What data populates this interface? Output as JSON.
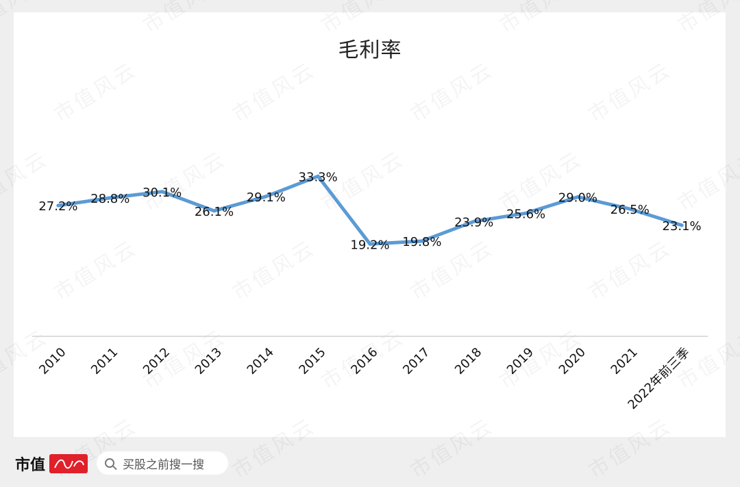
{
  "chart_data": {
    "type": "line",
    "title": "毛利率",
    "categories": [
      "2010",
      "2011",
      "2012",
      "2013",
      "2014",
      "2015",
      "2016",
      "2017",
      "2018",
      "2019",
      "2020",
      "2021",
      "2022年前三季"
    ],
    "values": [
      27.2,
      28.8,
      30.1,
      26.1,
      29.1,
      33.3,
      19.2,
      19.8,
      23.9,
      25.6,
      29.0,
      26.5,
      23.1
    ],
    "data_labels": [
      "27.2%",
      "28.8%",
      "30.1%",
      "26.1%",
      "29.1%",
      "33.3%",
      "19.2%",
      "19.8%",
      "23.9%",
      "25.6%",
      "29.0%",
      "26.5%",
      "23.1%"
    ],
    "ylim": [
      0,
      55
    ],
    "xlabel": "",
    "ylabel": "",
    "grid": false,
    "legend": "none",
    "line_color": "#5b9bd5"
  },
  "watermark": {
    "text": "市值风云"
  },
  "footer": {
    "brand": "市值",
    "search_placeholder": "买股之前搜一搜"
  }
}
